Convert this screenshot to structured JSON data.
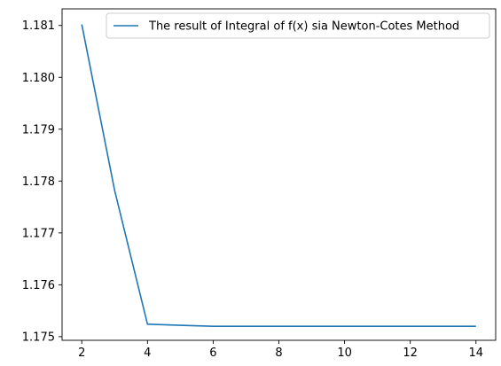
{
  "chart_data": {
    "type": "line",
    "title": "",
    "xlabel": "",
    "ylabel": "",
    "xlim": [
      1.4,
      14.6
    ],
    "ylim": [
      1.17493,
      1.18132
    ],
    "x_ticks": [
      2,
      4,
      6,
      8,
      10,
      12,
      14
    ],
    "y_ticks": [
      1.175,
      1.176,
      1.177,
      1.178,
      1.179,
      1.18,
      1.181
    ],
    "x_tick_labels": [
      "2",
      "4",
      "6",
      "8",
      "10",
      "12",
      "14"
    ],
    "y_tick_labels": [
      "1.175",
      "1.176",
      "1.177",
      "1.178",
      "1.179",
      "1.180",
      "1.181"
    ],
    "grid": false,
    "legend_position": "top-right",
    "series": [
      {
        "name": "The result of Integral of f(x) sia Newton-Cotes Method",
        "color": "#1f77b4",
        "x": [
          2,
          3,
          4,
          5,
          6,
          7,
          8,
          9,
          10,
          11,
          12,
          13,
          14
        ],
        "y": [
          1.18102,
          1.17782,
          1.17524,
          1.17522,
          1.1752,
          1.1752,
          1.1752,
          1.1752,
          1.1752,
          1.1752,
          1.1752,
          1.1752,
          1.1752
        ]
      }
    ]
  }
}
